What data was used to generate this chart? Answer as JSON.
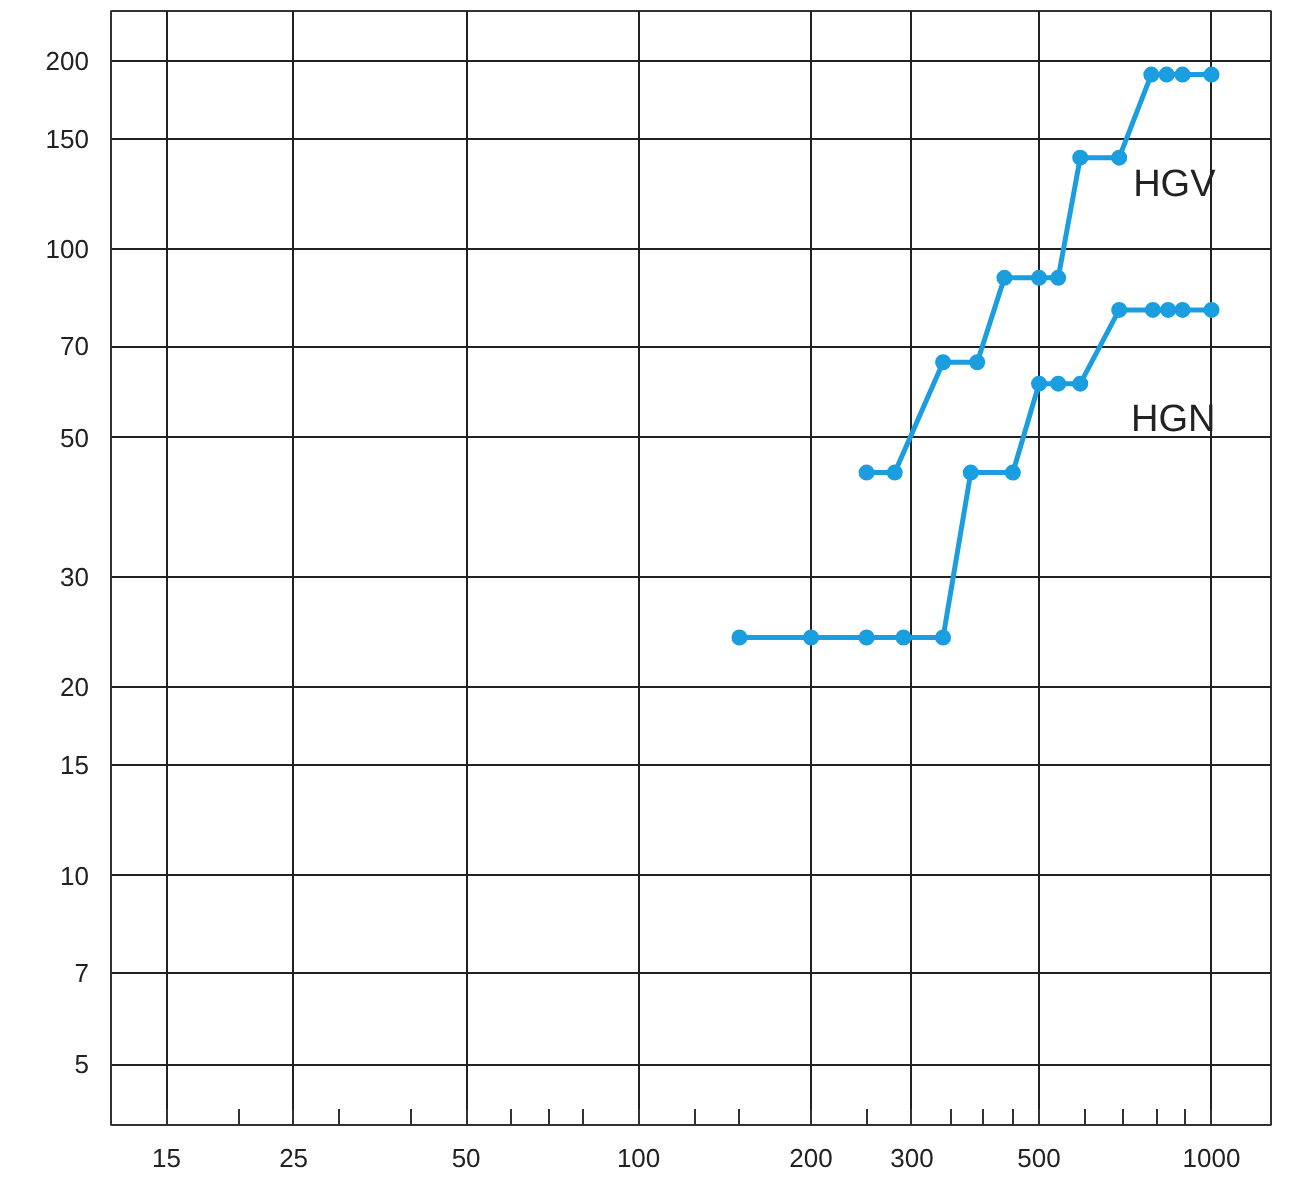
{
  "chart_data": {
    "type": "line",
    "log": "xy",
    "grid": true,
    "marker": "circle",
    "line_style": "solid",
    "legend": false,
    "xlim": [
      12,
      1270
    ],
    "ylim": [
      4,
      240
    ],
    "xticks": [
      15,
      {
        "value": 20,
        "label": null
      },
      25,
      {
        "value": 30,
        "label": null
      },
      {
        "value": 40,
        "label": null
      },
      50,
      {
        "value": 60,
        "label": null
      },
      {
        "value": 70,
        "label": null
      },
      {
        "value": 80,
        "label": null
      },
      100,
      {
        "value": 125,
        "label": null
      },
      {
        "value": 150,
        "label": null
      },
      200,
      {
        "value": 250,
        "label": null
      },
      300,
      {
        "value": 350,
        "label": null
      },
      {
        "value": 400,
        "label": null
      },
      {
        "value": 450,
        "label": null
      },
      500,
      {
        "value": 600,
        "label": null
      },
      {
        "value": 700,
        "label": null
      },
      {
        "value": 800,
        "label": null
      },
      {
        "value": 900,
        "label": null
      },
      1000
    ],
    "yticks": [
      5,
      7,
      10,
      15,
      20,
      30,
      50,
      70,
      100,
      150,
      200
    ],
    "series": [
      {
        "name": "HGV",
        "color": "#1a9ee0",
        "x": [
          250,
          280,
          340,
          390,
          435,
          500,
          540,
          590,
          690,
          785,
          835,
          890,
          1000
        ],
        "values": [
          44,
          44,
          66,
          66,
          90,
          90,
          90,
          140,
          140,
          190,
          190,
          190,
          190
        ]
      },
      {
        "name": "HGN",
        "color": "#1a9ee0",
        "x": [
          150,
          200,
          250,
          290,
          340,
          380,
          450,
          500,
          540,
          590,
          690,
          790,
          840,
          890,
          1000
        ],
        "values": [
          24,
          24,
          24,
          24,
          24,
          44,
          44,
          61,
          61,
          61,
          80,
          80,
          80,
          80,
          80
        ]
      }
    ]
  }
}
